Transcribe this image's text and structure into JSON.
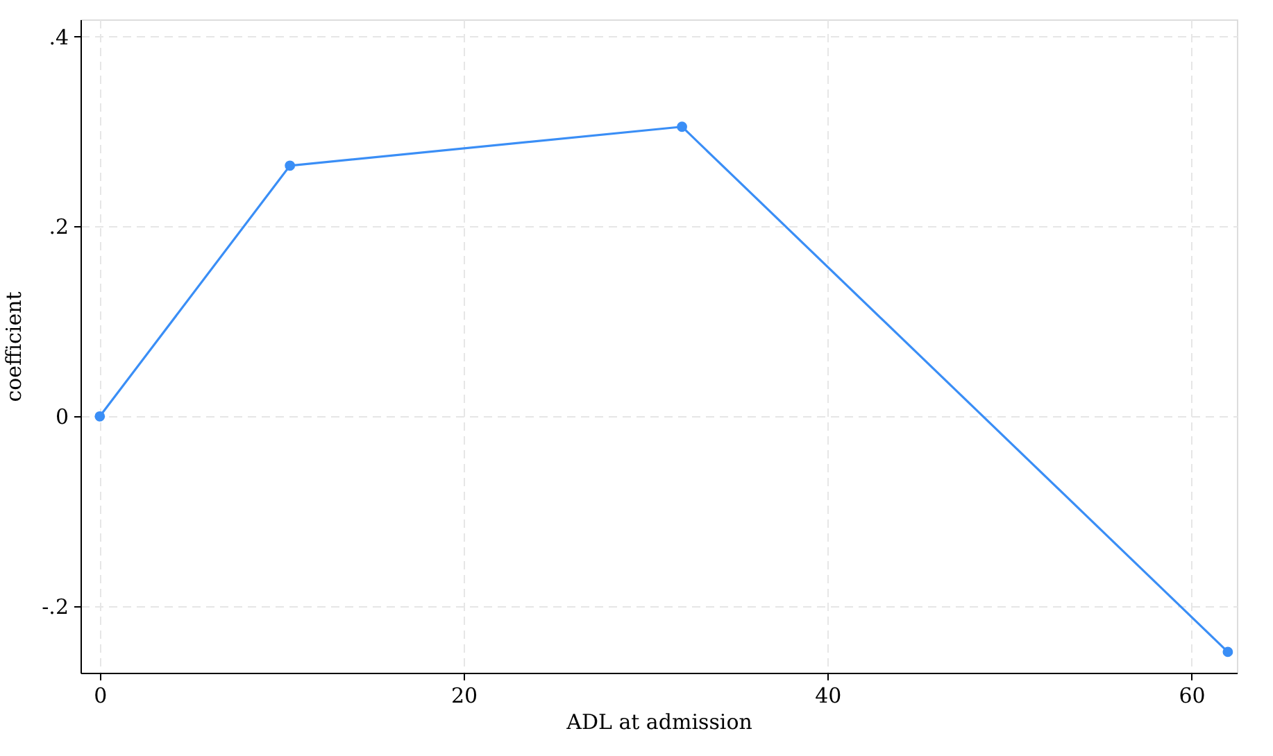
{
  "chart_data": {
    "type": "line",
    "xlabel": "ADL at admission",
    "ylabel": "coefficient",
    "x": [
      0,
      10.45,
      32,
      62
    ],
    "series": [
      {
        "color": "#3a8ef6",
        "values": [
          0,
          0.264,
          0.305,
          -0.248
        ]
      }
    ],
    "xlim": [
      -1.06,
      62.5
    ],
    "ylim": [
      -0.27,
      0.418
    ],
    "xticks": [
      0,
      20,
      40,
      60
    ],
    "yticks": [
      {
        "value": -0.2,
        "label": "-.2"
      },
      {
        "value": 0,
        "label": "0"
      },
      {
        "value": 0.2,
        "label": ".2"
      },
      {
        "value": 0.4,
        "label": ".4"
      }
    ],
    "grid": true,
    "marker": "circle",
    "line_style": "solid"
  }
}
